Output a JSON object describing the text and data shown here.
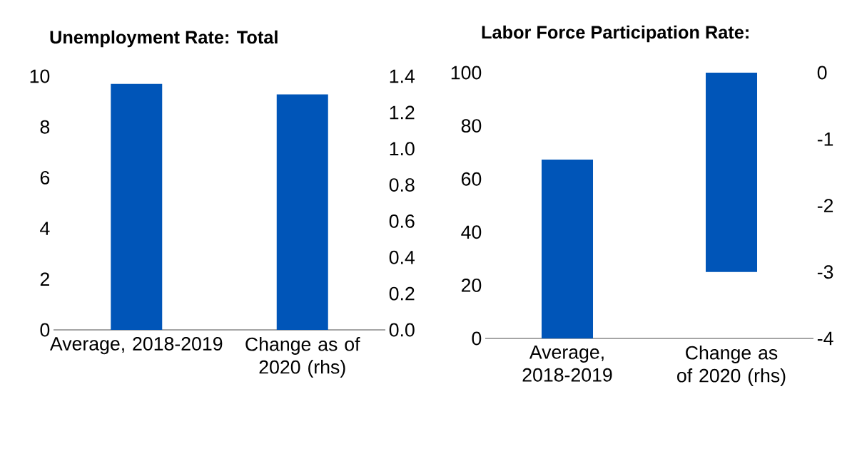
{
  "chart_data": [
    {
      "type": "bar",
      "title": "Unemployment Rate: Total",
      "categories": [
        "Average, 2018-2019",
        "Change as of 2020 (rhs)"
      ],
      "series": [
        {
          "color": "#0055b8",
          "values": [
            9.7,
            null
          ]
        },
        {
          "color": "#0055b8",
          "values": [
            null,
            1.3
          ],
          "axis": "y2"
        }
      ],
      "ylim": [
        0,
        10
      ],
      "yticks": [
        0,
        2,
        4,
        6,
        8,
        10
      ],
      "y2lim": [
        0,
        1.4
      ],
      "y2ticks": [
        {
          "value": 0,
          "label": "0.0"
        },
        {
          "value": 0.2,
          "label": "0.2"
        },
        {
          "value": 0.4,
          "label": "0.4"
        },
        {
          "value": 0.6,
          "label": "0.6"
        },
        {
          "value": 0.8,
          "label": "0.8"
        },
        {
          "value": 1.0,
          "label": "1.0"
        },
        {
          "value": 1.2,
          "label": "1.2"
        },
        {
          "value": 1.4,
          "label": "1.4"
        }
      ]
    },
    {
      "type": "bar",
      "title": "Labor Force Participation Rate:",
      "categories": [
        "Average, 2018-2019",
        "Change as of 2020 (rhs)"
      ],
      "series": [
        {
          "color": "#0055b8",
          "values": [
            67.3,
            null
          ]
        },
        {
          "color": "#0055b8",
          "values": [
            null,
            -3.0
          ],
          "axis": "y2"
        }
      ],
      "ylim": [
        0,
        100
      ],
      "yticks": [
        0,
        20,
        40,
        60,
        80,
        100
      ],
      "y2lim": [
        -4,
        0
      ],
      "y2ticks": [
        -4,
        -3,
        -2,
        -1,
        0
      ]
    }
  ]
}
